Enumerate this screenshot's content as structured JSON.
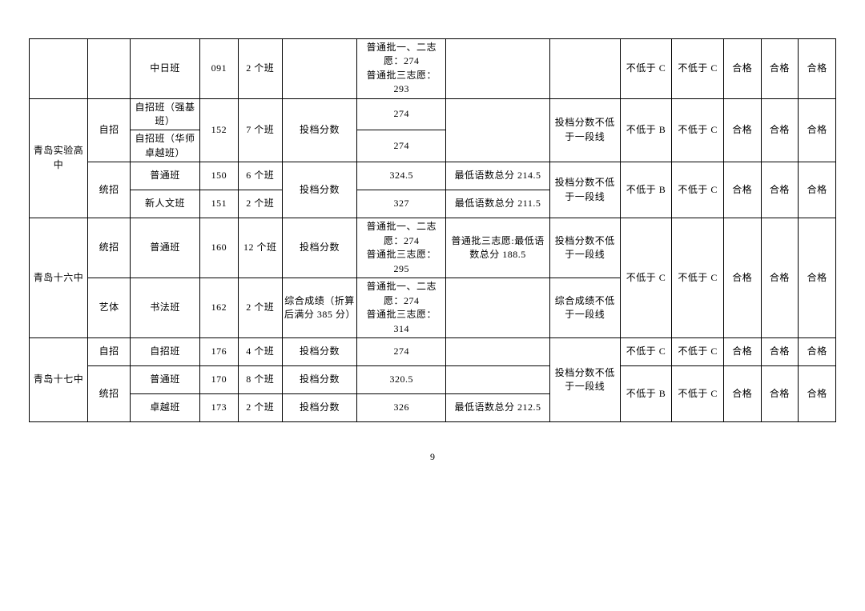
{
  "page_number": "9",
  "style": {
    "font_family": "SimSun",
    "font_size_pt": 9,
    "border_color": "#000000",
    "background": "#ffffff",
    "text_color": "#000000"
  },
  "table": {
    "type": "table",
    "r1": {
      "c3": "中日班",
      "c4": "091",
      "c5": "2 个班",
      "c7": "普通批一、二志愿：274\n普通批三志愿：293",
      "c10": "不低于 C",
      "c11": "不低于 C",
      "c12": "合格",
      "c13": "合格",
      "c14": "合格"
    },
    "r2": {
      "c1": "青岛实验高中",
      "c2": "自招",
      "c3": "自招班（强基班）",
      "c4": "152",
      "c5": "7 个班",
      "c6": "投档分数",
      "c7": "274",
      "c9": "投档分数不低于一段线",
      "c10": "不低于 B",
      "c11": "不低于 C",
      "c12": "合格",
      "c13": "合格",
      "c14": "合格"
    },
    "r3": {
      "c3": "自招班（华师卓越班）",
      "c7": "274"
    },
    "r4": {
      "c2": "统招",
      "c3": "普通班",
      "c4": "150",
      "c5": "6 个班",
      "c6": "投档分数",
      "c7": "324.5",
      "c8": "最低语数总分 214.5",
      "c9": "投档分数不低于一段线",
      "c10": "不低于 B",
      "c11": "不低于 C",
      "c12": "合格",
      "c13": "合格",
      "c14": "合格"
    },
    "r5": {
      "c3": "新人文班",
      "c4": "151",
      "c5": "2 个班",
      "c7": "327",
      "c8": "最低语数总分 211.5"
    },
    "r6": {
      "c1": "青岛十六中",
      "c2": "统招",
      "c3": "普通班",
      "c4": "160",
      "c5": "12 个班",
      "c6": "投档分数",
      "c7": "普通批一、二志愿：274\n普通批三志愿：295",
      "c8": "普通批三志愿:最低语数总分 188.5",
      "c9": "投档分数不低于一段线",
      "c10": "不低于 C",
      "c11": "不低于 C",
      "c12": "合格",
      "c13": "合格",
      "c14": "合格"
    },
    "r7": {
      "c2": "艺体",
      "c3": "书法班",
      "c4": "162",
      "c5": "2 个班",
      "c6": "综合成绩（折算后满分 385 分）",
      "c7": "普通批一、二志愿：274\n普通批三志愿：314",
      "c9": "综合成绩不低于一段线"
    },
    "r8": {
      "c1": "青岛十七中",
      "c2": "自招",
      "c3": "自招班",
      "c4": "176",
      "c5": "4 个班",
      "c6": "投档分数",
      "c7": "274",
      "c9": "投档分数不低于一段线",
      "c10": "不低于 C",
      "c11": "不低于 C",
      "c12": "合格",
      "c13": "合格",
      "c14": "合格"
    },
    "r9": {
      "c2": "统招",
      "c3": "普通班",
      "c4": "170",
      "c5": "8 个班",
      "c6": "投档分数",
      "c7": "320.5",
      "c10": "不低于 B",
      "c11": "不低于 C",
      "c12": "合格",
      "c13": "合格",
      "c14": "合格"
    },
    "r10": {
      "c3": "卓越班",
      "c4": "173",
      "c5": "2 个班",
      "c6": "投档分数",
      "c7": "326",
      "c8": "最低语数总分 212.5"
    }
  }
}
